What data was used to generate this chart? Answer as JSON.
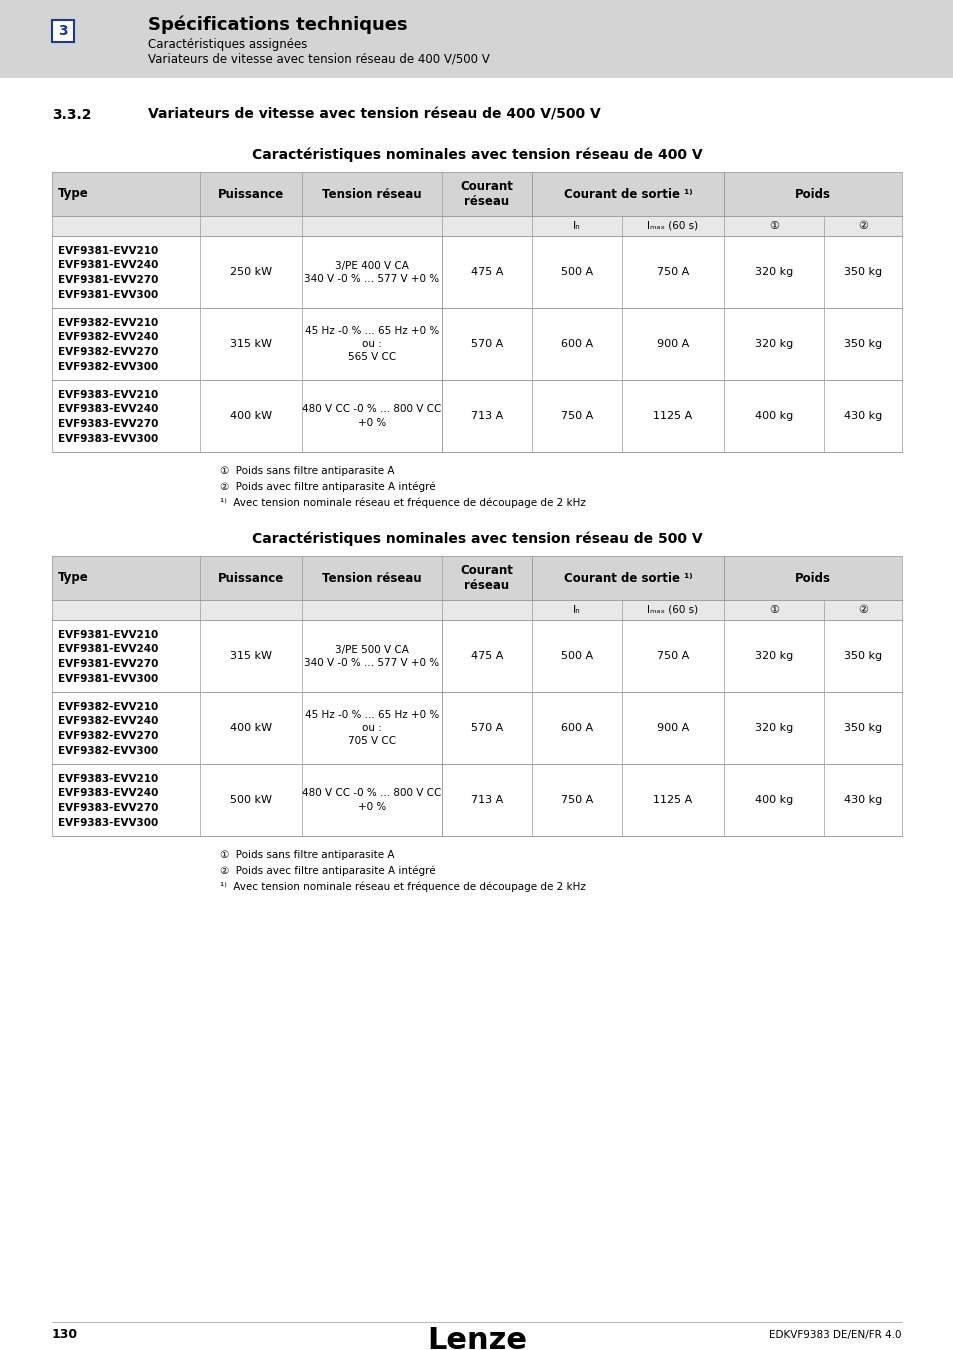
{
  "page_bg": "#ffffff",
  "header_bg": "#d4d4d4",
  "header_title": "Spécifications techniques",
  "header_sub1": "Caractéristiques assignées",
  "header_sub2": "Variateurs de vitesse avec tension réseau de 400 V/500 V",
  "header_number": "3",
  "section_title": "3.3.2",
  "section_title_text": "Variateurs de vitesse avec tension réseau de 400 V/500 V",
  "table1_title": "Caractéristiques nominales avec tension réseau de 400 V",
  "table2_title": "Caractéristiques nominales avec tension réseau de 500 V",
  "table1_tension_rows": [
    [
      "3/PE 400 V CA",
      "340 V -0 % ... 577 V +0 %"
    ],
    [
      "45 Hz -0 % ... 65 Hz +0 %",
      "ou :",
      "565 V CC"
    ],
    [
      "480 V CC -0 % ... 800 V CC",
      "+0 %"
    ]
  ],
  "table2_tension_rows": [
    [
      "3/PE 500 V CA",
      "340 V -0 % ... 577 V +0 %"
    ],
    [
      "45 Hz -0 % ... 65 Hz +0 %",
      "ou :",
      "705 V CC"
    ],
    [
      "480 V CC -0 % ... 800 V CC",
      "+0 %"
    ]
  ],
  "table1_rows": [
    {
      "types": [
        "EVF9381-EVV210",
        "EVF9381-EVV240",
        "EVF9381-EVV270",
        "EVF9381-EVV300"
      ],
      "power": "250 kW",
      "courant": "475 A",
      "In": "500 A",
      "Imax": "750 A",
      "w1": "320 kg",
      "w2": "350 kg"
    },
    {
      "types": [
        "EVF9382-EVV210",
        "EVF9382-EVV240",
        "EVF9382-EVV270",
        "EVF9382-EVV300"
      ],
      "power": "315 kW",
      "courant": "570 A",
      "In": "600 A",
      "Imax": "900 A",
      "w1": "320 kg",
      "w2": "350 kg"
    },
    {
      "types": [
        "EVF9383-EVV210",
        "EVF9383-EVV240",
        "EVF9383-EVV270",
        "EVF9383-EVV300"
      ],
      "power": "400 kW",
      "courant": "713 A",
      "In": "750 A",
      "Imax": "1125 A",
      "w1": "400 kg",
      "w2": "430 kg"
    }
  ],
  "table2_rows": [
    {
      "types": [
        "EVF9381-EVV210",
        "EVF9381-EVV240",
        "EVF9381-EVV270",
        "EVF9381-EVV300"
      ],
      "power": "315 kW",
      "courant": "475 A",
      "In": "500 A",
      "Imax": "750 A",
      "w1": "320 kg",
      "w2": "350 kg"
    },
    {
      "types": [
        "EVF9382-EVV210",
        "EVF9382-EVV240",
        "EVF9382-EVV270",
        "EVF9382-EVV300"
      ],
      "power": "400 kW",
      "courant": "570 A",
      "In": "600 A",
      "Imax": "900 A",
      "w1": "320 kg",
      "w2": "350 kg"
    },
    {
      "types": [
        "EVF9383-EVV210",
        "EVF9383-EVV240",
        "EVF9383-EVV270",
        "EVF9383-EVV300"
      ],
      "power": "500 kW",
      "courant": "713 A",
      "In": "750 A",
      "Imax": "1125 A",
      "w1": "400 kg",
      "w2": "430 kg"
    }
  ],
  "footnote1": "①  Poids sans filtre antiparasite A",
  "footnote2": "②  Poids avec filtre antiparasite A intégré",
  "footnote3": "¹⁾  Avec tension nominale réseau et fréquence de découpage de 2 kHz",
  "footer_page": "130",
  "footer_doc": "EDKVF9383 DE/EN/FR 4.0",
  "footer_brand": "Lenze"
}
